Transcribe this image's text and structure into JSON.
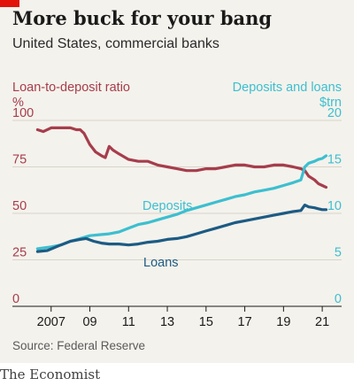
{
  "header": {
    "title": "More buck for your bang",
    "subtitle": "United States, commercial banks"
  },
  "footer": {
    "source": "Source: Federal Reserve",
    "brand": "The Economist"
  },
  "colors": {
    "background": "#f4f2ec",
    "ratio": "#a63d4c",
    "deposits": "#3cbfd0",
    "loans": "#1c5b84",
    "grid": "#cfcac0",
    "text": "#1a1a1a",
    "brand_red": "#e3120b"
  },
  "chart_data": {
    "type": "line",
    "x_ticks": [
      "2007",
      "09",
      "11",
      "13",
      "15",
      "17",
      "19",
      "21"
    ],
    "x_tick_values": [
      2007,
      2009,
      2011,
      2013,
      2015,
      2017,
      2019,
      2021
    ],
    "xlim": [
      2005,
      2022
    ],
    "grid": true,
    "left_axis": {
      "title": "Loan-to-deposit ratio",
      "unit": "%",
      "ticks": [
        "100",
        "75",
        "50",
        "25",
        "0"
      ],
      "ylim": [
        0,
        100
      ]
    },
    "right_axis": {
      "title": "Deposits and loans",
      "unit": "$trn",
      "ticks": [
        "20",
        "15",
        "10",
        "5",
        "0"
      ],
      "ylim": [
        0,
        20
      ]
    },
    "annotations": {
      "deposits": "Deposits",
      "loans": "Loans"
    },
    "series": [
      {
        "key": "ratio",
        "axis": "left",
        "x": [
          2006.3,
          2006.6,
          2007.0,
          2007.5,
          2008.0,
          2008.3,
          2008.5,
          2008.7,
          2009.0,
          2009.3,
          2009.6,
          2009.8,
          2010.0,
          2010.2,
          2010.5,
          2011.0,
          2011.5,
          2012.0,
          2012.5,
          2013.0,
          2013.5,
          2014.0,
          2014.5,
          2015.0,
          2015.5,
          2016.0,
          2016.5,
          2017.0,
          2017.5,
          2018.0,
          2018.5,
          2019.0,
          2019.5,
          2019.9,
          2020.1,
          2020.3,
          2020.6,
          2020.8,
          2021.0,
          2021.2
        ],
        "y": [
          95,
          94,
          96,
          96,
          96,
          95,
          95,
          93,
          87,
          83,
          81,
          80,
          86,
          84,
          82,
          79,
          78,
          78,
          76,
          75,
          74,
          73,
          73,
          74,
          74,
          75,
          76,
          76,
          75,
          75,
          76,
          76,
          75,
          74,
          73,
          70,
          68,
          66,
          65,
          64
        ]
      },
      {
        "key": "deposits",
        "axis": "right",
        "x": [
          2006.3,
          2007.0,
          2007.5,
          2008.0,
          2008.5,
          2009.0,
          2009.5,
          2010.0,
          2010.5,
          2011.0,
          2011.5,
          2012.0,
          2012.5,
          2013.0,
          2013.5,
          2014.0,
          2014.5,
          2015.0,
          2015.5,
          2016.0,
          2016.5,
          2017.0,
          2017.5,
          2018.0,
          2018.5,
          2019.0,
          2019.5,
          2019.9,
          2020.1,
          2020.3,
          2020.6,
          2020.8,
          2021.0,
          2021.2
        ],
        "y": [
          6.2,
          6.4,
          6.6,
          7.0,
          7.3,
          7.6,
          7.7,
          7.8,
          8.0,
          8.4,
          8.8,
          9.0,
          9.3,
          9.6,
          9.9,
          10.3,
          10.6,
          10.9,
          11.2,
          11.5,
          11.8,
          12.0,
          12.3,
          12.5,
          12.7,
          13.0,
          13.3,
          13.6,
          15.0,
          15.4,
          15.6,
          15.8,
          15.9,
          16.2
        ]
      },
      {
        "key": "loans",
        "axis": "right",
        "x": [
          2006.3,
          2006.8,
          2007.5,
          2008.0,
          2008.5,
          2008.8,
          2009.2,
          2009.6,
          2010.0,
          2010.5,
          2011.0,
          2011.5,
          2012.0,
          2012.5,
          2013.0,
          2013.5,
          2014.0,
          2014.5,
          2015.0,
          2015.5,
          2016.0,
          2016.5,
          2017.0,
          2017.5,
          2018.0,
          2018.5,
          2019.0,
          2019.5,
          2019.9,
          2020.1,
          2020.3,
          2020.6,
          2020.8,
          2021.0,
          2021.2
        ],
        "y": [
          5.9,
          6.0,
          6.6,
          7.0,
          7.2,
          7.3,
          7.0,
          6.8,
          6.7,
          6.7,
          6.6,
          6.7,
          6.9,
          7.0,
          7.2,
          7.3,
          7.5,
          7.8,
          8.1,
          8.4,
          8.7,
          9.0,
          9.2,
          9.4,
          9.6,
          9.8,
          10.0,
          10.2,
          10.3,
          10.9,
          10.7,
          10.6,
          10.5,
          10.4,
          10.4
        ]
      }
    ]
  }
}
